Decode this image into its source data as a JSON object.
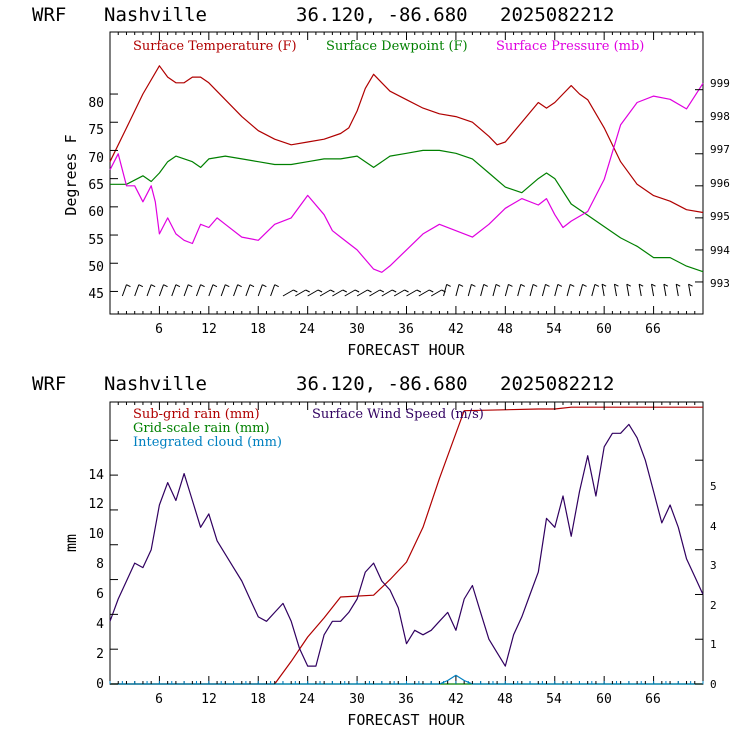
{
  "charts": [
    {
      "header": {
        "model": "WRF",
        "station": "Nashville",
        "coords": "36.120, -86.680",
        "run": "2025082212"
      },
      "x_ticks": [
        "6",
        "12",
        "18",
        "24",
        "30",
        "36",
        "42",
        "48",
        "54",
        "60",
        "66"
      ],
      "xlabel": "FORECAST HOUR",
      "ylabel": "Degrees F",
      "left_ticks": [
        "45",
        "50",
        "55",
        "60",
        "65",
        "70",
        "75",
        "80"
      ],
      "right_ticks": [
        "993",
        "994",
        "995",
        "996",
        "997",
        "998",
        "999"
      ],
      "legend": [
        "Surface Temperature (F)",
        "Surface Dewpoint (F)",
        "Surface Pressure (mb)"
      ]
    },
    {
      "header": {
        "model": "WRF",
        "station": "Nashville",
        "coords": "36.120, -86.680",
        "run": "2025082212"
      },
      "x_ticks": [
        "6",
        "12",
        "18",
        "24",
        "30",
        "36",
        "42",
        "48",
        "54",
        "60",
        "66"
      ],
      "xlabel": "FORECAST HOUR",
      "ylabel": "mm",
      "left_ticks": [
        "0",
        "2",
        "4",
        "6",
        "8",
        "10",
        "12",
        "14"
      ],
      "right_ticks": [
        "0",
        "1",
        "2",
        "3",
        "4",
        "5"
      ],
      "legend": [
        "Sub-grid rain (mm)",
        "Surface Wind Speed (m/s)",
        "Grid-scale rain (mm)",
        "Integrated cloud (mm)"
      ]
    }
  ],
  "chart_data": [
    {
      "type": "line",
      "x_range": [
        0,
        72
      ],
      "ylim_left": [
        41,
        91
      ],
      "ylim_right": [
        992.0,
        1000.8
      ],
      "series": [
        {
          "name": "Surface Temperature (F)",
          "color": "#b00000",
          "axis": "left",
          "x": [
            0,
            2,
            4,
            6,
            7,
            8,
            9,
            10,
            11,
            12,
            14,
            16,
            18,
            20,
            22,
            24,
            26,
            28,
            29,
            30,
            31,
            32,
            33,
            34,
            36,
            38,
            40,
            42,
            44,
            46,
            47,
            48,
            50,
            52,
            53,
            54,
            55,
            56,
            57,
            58,
            60,
            62,
            64,
            66,
            68,
            70,
            72
          ],
          "y": [
            68,
            74,
            80,
            85,
            83,
            82,
            82,
            83,
            83,
            82,
            79,
            76,
            73.5,
            72,
            71,
            71.5,
            72,
            73,
            74,
            77,
            81,
            83.5,
            82,
            80.5,
            79,
            77.5,
            76.5,
            76,
            75,
            72.5,
            71,
            71.5,
            75,
            78.5,
            77.5,
            78.5,
            80,
            81.5,
            80,
            79,
            74,
            68,
            64,
            62,
            61,
            59.5,
            59
          ]
        },
        {
          "name": "Surface Dewpoint (F)",
          "color": "#008000",
          "axis": "left",
          "x": [
            0,
            2,
            4,
            5,
            6,
            7,
            8,
            10,
            11,
            12,
            14,
            16,
            18,
            20,
            22,
            24,
            26,
            28,
            30,
            31,
            32,
            34,
            36,
            38,
            40,
            42,
            44,
            46,
            48,
            50,
            52,
            53,
            54,
            56,
            58,
            60,
            62,
            64,
            66,
            68,
            70,
            72
          ],
          "y": [
            64,
            64,
            65.5,
            64.5,
            66,
            68,
            69,
            68,
            67,
            68.5,
            69,
            68.5,
            68,
            67.5,
            67.5,
            68,
            68.5,
            68.5,
            69,
            68,
            67,
            69,
            69.5,
            70,
            70,
            69.5,
            68.5,
            66,
            63.5,
            62.5,
            65,
            66,
            65,
            60.5,
            58.5,
            56.5,
            54.5,
            53,
            51,
            51,
            49.5,
            48.5
          ]
        },
        {
          "name": "Surface Pressure (mb)",
          "color": "#e000e0",
          "axis": "right",
          "x": [
            0,
            1,
            2,
            3,
            4,
            5,
            5.5,
            6,
            7,
            8,
            9,
            10,
            11,
            12,
            13,
            14,
            16,
            18,
            20,
            22,
            24,
            26,
            27,
            28,
            30,
            32,
            33,
            34,
            36,
            38,
            40,
            42,
            44,
            46,
            48,
            50,
            52,
            53,
            54,
            55,
            56,
            58,
            60,
            62,
            64,
            66,
            68,
            70,
            71,
            72
          ],
          "y": [
            996.5,
            997,
            996,
            996,
            995.5,
            996,
            995.5,
            994.5,
            995,
            994.5,
            994.3,
            994.2,
            994.8,
            994.7,
            995,
            994.8,
            994.4,
            994.3,
            994.8,
            995.0,
            995.7,
            995.1,
            994.6,
            994.4,
            994.0,
            993.4,
            993.3,
            993.5,
            994.0,
            994.5,
            994.8,
            994.6,
            994.4,
            994.8,
            995.3,
            995.6,
            995.4,
            995.6,
            995.1,
            994.7,
            994.9,
            995.2,
            996.2,
            997.9,
            998.6,
            998.8,
            998.7,
            998.4,
            998.8,
            999.2
          ]
        }
      ]
    },
    {
      "type": "line",
      "x_range": [
        0,
        72
      ],
      "ylim_left": [
        0,
        16.2
      ],
      "ylim_right": [
        0,
        6.3
      ],
      "series": [
        {
          "name": "Sub-grid rain (mm)",
          "color": "#b00000",
          "axis": "left",
          "x": [
            0,
            20,
            22,
            24,
            26,
            28,
            32,
            34,
            36,
            38,
            40,
            42,
            43,
            52,
            54,
            56,
            58,
            60,
            72
          ],
          "y": [
            0,
            0,
            1.3,
            2.7,
            3.8,
            5.0,
            5.1,
            6.0,
            7.0,
            9.0,
            11.8,
            14.4,
            15.7,
            15.8,
            15.8,
            15.9,
            15.9,
            15.9,
            15.9
          ]
        },
        {
          "name": "Surface Wind Speed (m/s)",
          "color": "#300060",
          "axis": "right",
          "x": [
            0,
            1,
            2,
            3,
            4,
            5,
            6,
            7,
            8,
            9,
            10,
            11,
            12,
            13,
            14,
            15,
            16,
            17,
            18,
            19,
            20,
            21,
            22,
            23,
            24,
            25,
            26,
            27,
            28,
            29,
            30,
            31,
            32,
            33,
            34,
            35,
            36,
            37,
            38,
            39,
            40,
            41,
            42,
            43,
            44,
            45,
            46,
            47,
            48,
            49,
            50,
            51,
            52,
            53,
            54,
            55,
            56,
            57,
            58,
            59,
            60,
            61,
            62,
            63,
            64,
            65,
            66,
            67,
            68,
            69,
            70,
            71,
            72
          ],
          "y": [
            1.4,
            1.9,
            2.3,
            2.7,
            2.6,
            3.0,
            4.0,
            4.5,
            4.1,
            4.7,
            4.1,
            3.5,
            3.8,
            3.2,
            2.9,
            2.6,
            2.3,
            1.9,
            1.5,
            1.4,
            1.6,
            1.8,
            1.4,
            0.8,
            0.4,
            0.4,
            1.1,
            1.4,
            1.4,
            1.6,
            1.9,
            2.5,
            2.7,
            2.3,
            2.1,
            1.7,
            0.9,
            1.2,
            1.1,
            1.2,
            1.4,
            1.6,
            1.2,
            1.9,
            2.2,
            1.6,
            1.0,
            0.7,
            0.4,
            1.1,
            1.5,
            2.0,
            2.5,
            3.7,
            3.5,
            4.2,
            3.3,
            4.3,
            5.1,
            4.2,
            5.3,
            5.6,
            5.6,
            5.8,
            5.5,
            5.0,
            4.3,
            3.6,
            4.0,
            3.5,
            2.8,
            2.4,
            2.0
          ]
        },
        {
          "name": "Grid-scale rain (mm)",
          "color": "#008000",
          "axis": "left",
          "x": [
            0,
            72
          ],
          "y": [
            0,
            0
          ]
        },
        {
          "name": "Integrated cloud (mm)",
          "color": "#0080c0",
          "axis": "left",
          "x": [
            0,
            40,
            41,
            42,
            43,
            44,
            72
          ],
          "y": [
            0,
            0,
            0.2,
            0.5,
            0.2,
            0,
            0
          ]
        }
      ]
    }
  ]
}
